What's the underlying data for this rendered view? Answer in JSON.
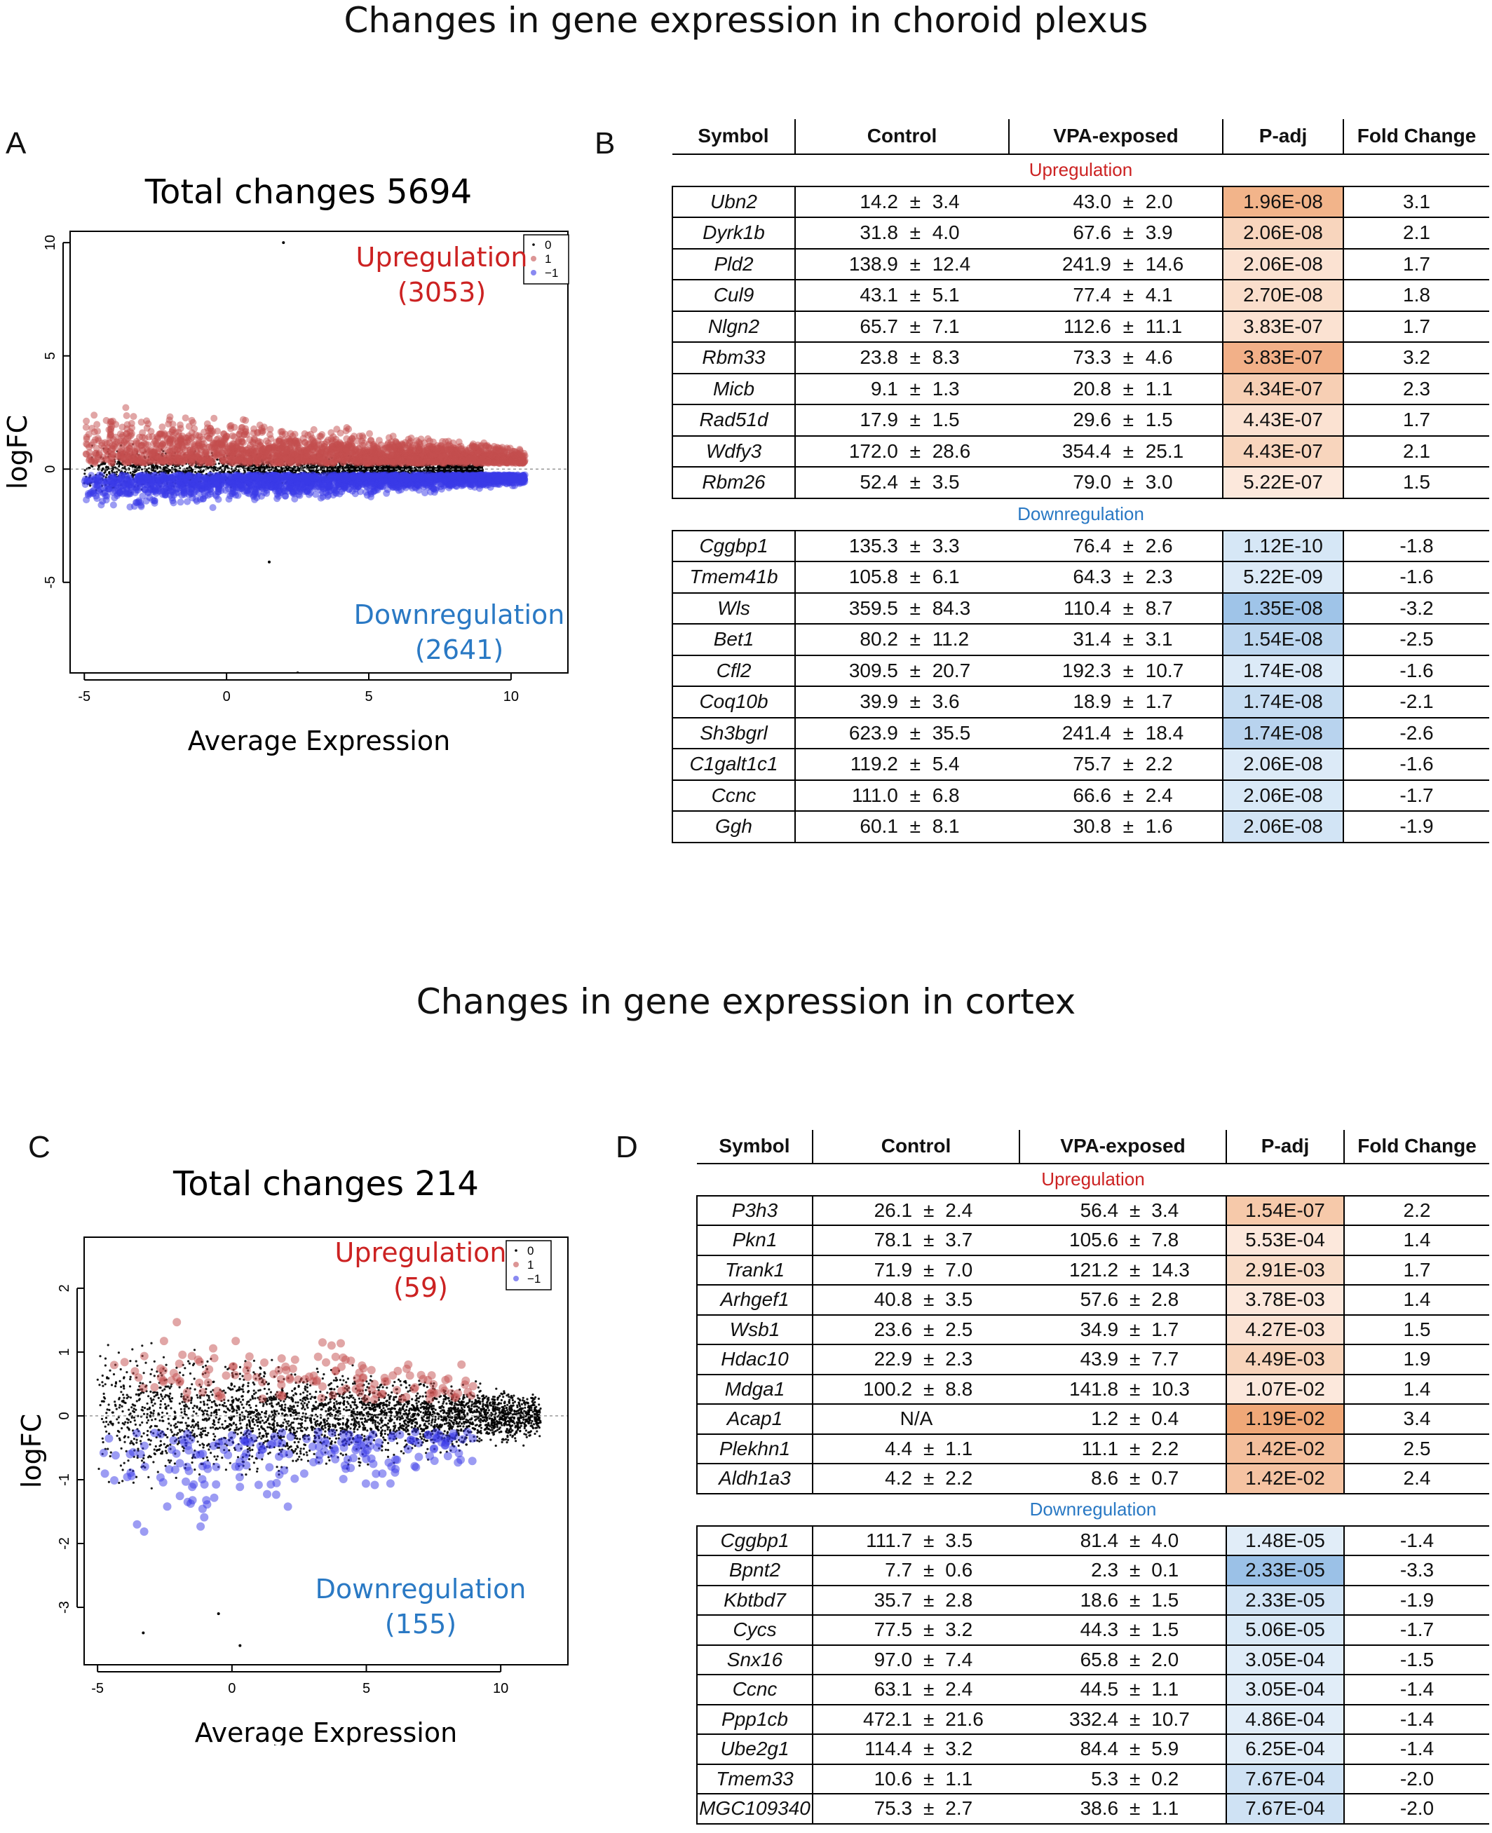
{
  "titles": {
    "top": "Changes in gene expression in choroid plexus",
    "bottom": "Changes in gene expression in cortex"
  },
  "panels": {
    "A": "A",
    "B": "B",
    "C": "C",
    "D": "D"
  },
  "table_headers": [
    "Symbol",
    "Control",
    "VPA-exposed",
    "P-adj",
    "Fold Change"
  ],
  "colors": {
    "up": "#cc2222",
    "down": "#2a79c4",
    "up_points": "#c44e4e",
    "down_points": "#3a3ae8"
  },
  "chart_data": [
    {
      "type": "scatter",
      "title": "Total changes 5694",
      "xlabel": "Average Expression",
      "ylabel": "logFC",
      "xlim": [
        -5.5,
        12
      ],
      "ylim": [
        -9,
        10.5
      ],
      "xticks": [
        "-5",
        "0",
        "5",
        "10"
      ],
      "xtick_values": [
        -5,
        0,
        5,
        10
      ],
      "yticks": [
        "10",
        "5",
        "0",
        "-5"
      ],
      "ytick_values": [
        10,
        5,
        0,
        -5
      ],
      "legend": {
        "entries": [
          "0",
          "1",
          "−1"
        ],
        "position": "top-right"
      },
      "annotations": {
        "up_label": "Upregulation",
        "up_count": "(3053)",
        "down_label": "Downregulation",
        "down_count": "(2641)"
      },
      "series": [
        {
          "name": "1",
          "x_range": [
            -5,
            10.5
          ],
          "y_center": 1.0,
          "spread": 1.0,
          "density": 0.9
        },
        {
          "name": "0",
          "x_range": [
            -5,
            9
          ],
          "y_center": 0,
          "spread": 0.6,
          "density": 1.0
        },
        {
          "name": "−1",
          "x_range": [
            -5,
            10.5
          ],
          "y_center": -0.7,
          "spread": 0.7,
          "density": 0.9
        }
      ],
      "outliers": [
        [
          2,
          10
        ],
        [
          -4.5,
          0
        ],
        [
          1.5,
          -4.1
        ],
        [
          2.5,
          -9
        ]
      ]
    },
    {
      "type": "scatter",
      "title": "Total changes 214",
      "xlabel": "Average Expression",
      "ylabel": "logFC",
      "xlim": [
        -5.5,
        12.5
      ],
      "ylim": [
        -3.9,
        2.8
      ],
      "xticks": [
        "-5",
        "0",
        "5",
        "10"
      ],
      "xtick_values": [
        -5,
        0,
        5,
        10
      ],
      "yticks": [
        "2",
        "1",
        "0",
        "-1",
        "-2",
        "-3"
      ],
      "ytick_values": [
        2,
        1,
        0,
        -1,
        -2,
        -3
      ],
      "legend": {
        "entries": [
          "0",
          "1",
          "−1"
        ],
        "position": "top-right"
      },
      "annotations": {
        "up_label": "Upregulation",
        "up_count": "(59)",
        "down_label": "Downregulation",
        "down_count": "(155)"
      },
      "series": [
        {
          "name": "0",
          "x_range": [
            -5,
            11.5
          ],
          "y_center": 0,
          "spread": 0.7,
          "density": 1.0
        },
        {
          "name": "1",
          "x_range": [
            -4.5,
            9
          ],
          "y_center": 0.8,
          "spread": 0.7,
          "density": 0.35
        },
        {
          "name": "−1",
          "x_range": [
            -5,
            9
          ],
          "y_center": -0.8,
          "spread": 0.8,
          "density": 0.5
        }
      ],
      "outliers": [
        [
          0.3,
          -3.6
        ],
        [
          -3.3,
          -3.4
        ],
        [
          -0.5,
          -3.1
        ]
      ]
    },
    {
      "type": "table",
      "columns": [
        "Symbol",
        "Control",
        "VPA-exposed",
        "P-adj",
        "Fold Change"
      ],
      "groups": [
        {
          "label": "Upregulation",
          "kind": "up",
          "rows": [
            {
              "symbol": "Ubn2",
              "c": "14.2",
              "cs": "3.4",
              "v": "43.0",
              "vs": "2.0",
              "p": "1.96E-08",
              "fc": "3.1",
              "shade": "#f2b48a"
            },
            {
              "symbol": "Dyrk1b",
              "c": "31.8",
              "cs": "4.0",
              "v": "67.6",
              "vs": "3.9",
              "p": "2.06E-08",
              "fc": "2.1",
              "shade": "#f8d5bd"
            },
            {
              "symbol": "Pld2",
              "c": "138.9",
              "cs": "12.4",
              "v": "241.9",
              "vs": "14.6",
              "p": "2.06E-08",
              "fc": "1.7",
              "shade": "#fbe2d2"
            },
            {
              "symbol": "Cul9",
              "c": "43.1",
              "cs": "5.1",
              "v": "77.4",
              "vs": "4.1",
              "p": "2.70E-08",
              "fc": "1.8",
              "shade": "#fadecb"
            },
            {
              "symbol": "Nlgn2",
              "c": "65.7",
              "cs": "7.1",
              "v": "112.6",
              "vs": "11.1",
              "p": "3.83E-07",
              "fc": "1.7",
              "shade": "#fbe2d2"
            },
            {
              "symbol": "Rbm33",
              "c": "23.8",
              "cs": "8.3",
              "v": "73.3",
              "vs": "4.6",
              "p": "3.83E-07",
              "fc": "3.2",
              "shade": "#f2b088"
            },
            {
              "symbol": "Micb",
              "c": "9.1",
              "cs": "1.3",
              "v": "20.8",
              "vs": "1.1",
              "p": "4.34E-07",
              "fc": "2.3",
              "shade": "#f7cfb4"
            },
            {
              "symbol": "Rad51d",
              "c": "17.9",
              "cs": "1.5",
              "v": "29.6",
              "vs": "1.5",
              "p": "4.43E-07",
              "fc": "1.7",
              "shade": "#fbe2d2"
            },
            {
              "symbol": "Wdfy3",
              "c": "172.0",
              "cs": "28.6",
              "v": "354.4",
              "vs": "25.1",
              "p": "4.43E-07",
              "fc": "2.1",
              "shade": "#f8d5bd"
            },
            {
              "symbol": "Rbm26",
              "c": "52.4",
              "cs": "3.5",
              "v": "79.0",
              "vs": "3.0",
              "p": "5.22E-07",
              "fc": "1.5",
              "shade": "#fce8dc"
            }
          ]
        },
        {
          "label": "Downregulation",
          "kind": "down",
          "rows": [
            {
              "symbol": "Cggbp1",
              "c": "135.3",
              "cs": "3.3",
              "v": "76.4",
              "vs": "2.6",
              "p": "1.12E-10",
              "fc": "-1.8",
              "shade": "#d6e7f6"
            },
            {
              "symbol": "Tmem41b",
              "c": "105.8",
              "cs": "6.1",
              "v": "64.3",
              "vs": "2.3",
              "p": "5.22E-09",
              "fc": "-1.6",
              "shade": "#dceaf7"
            },
            {
              "symbol": "Wls",
              "c": "359.5",
              "cs": "84.3",
              "v": "110.4",
              "vs": "8.7",
              "p": "1.35E-08",
              "fc": "-3.2",
              "shade": "#9fc4e8"
            },
            {
              "symbol": "Bet1",
              "c": "80.2",
              "cs": "11.2",
              "v": "31.4",
              "vs": "3.1",
              "p": "1.54E-08",
              "fc": "-2.5",
              "shade": "#bcd6ef"
            },
            {
              "symbol": "Cfl2",
              "c": "309.5",
              "cs": "20.7",
              "v": "192.3",
              "vs": "10.7",
              "p": "1.74E-08",
              "fc": "-1.6",
              "shade": "#dceaf7"
            },
            {
              "symbol": "Coq10b",
              "c": "39.9",
              "cs": "3.6",
              "v": "18.9",
              "vs": "1.7",
              "p": "1.74E-08",
              "fc": "-2.1",
              "shade": "#c7ddf2"
            },
            {
              "symbol": "Sh3bgrl",
              "c": "623.9",
              "cs": "35.5",
              "v": "241.4",
              "vs": "18.4",
              "p": "1.74E-08",
              "fc": "-2.6",
              "shade": "#b8d3ee"
            },
            {
              "symbol": "C1galt1c1",
              "c": "119.2",
              "cs": "5.4",
              "v": "75.7",
              "vs": "2.2",
              "p": "2.06E-08",
              "fc": "-1.6",
              "shade": "#dceaf7"
            },
            {
              "symbol": "Ccnc",
              "c": "111.0",
              "cs": "6.8",
              "v": "66.6",
              "vs": "2.4",
              "p": "2.06E-08",
              "fc": "-1.7",
              "shade": "#d9e9f7"
            },
            {
              "symbol": "Ggh",
              "c": "60.1",
              "cs": "8.1",
              "v": "30.8",
              "vs": "1.6",
              "p": "2.06E-08",
              "fc": "-1.9",
              "shade": "#d2e4f5"
            }
          ]
        }
      ]
    },
    {
      "type": "table",
      "columns": [
        "Symbol",
        "Control",
        "VPA-exposed",
        "P-adj",
        "Fold Change"
      ],
      "groups": [
        {
          "label": "Upregulation",
          "kind": "up",
          "rows": [
            {
              "symbol": "P3h3",
              "c": "26.1",
              "cs": "2.4",
              "v": "56.4",
              "vs": "3.4",
              "p": "1.54E-07",
              "fc": "2.2",
              "shade": "#f6c9aa"
            },
            {
              "symbol": "Pkn1",
              "c": "78.1",
              "cs": "3.7",
              "v": "105.6",
              "vs": "7.8",
              "p": "5.53E-04",
              "fc": "1.4",
              "shade": "#fce8dc"
            },
            {
              "symbol": "Trank1",
              "c": "71.9",
              "cs": "7.0",
              "v": "121.2",
              "vs": "14.3",
              "p": "2.91E-03",
              "fc": "1.7",
              "shade": "#f9dcc8"
            },
            {
              "symbol": "Arhgef1",
              "c": "40.8",
              "cs": "3.5",
              "v": "57.6",
              "vs": "2.8",
              "p": "3.78E-03",
              "fc": "1.4",
              "shade": "#fce8dc"
            },
            {
              "symbol": "Wsb1",
              "c": "23.6",
              "cs": "2.5",
              "v": "34.9",
              "vs": "1.7",
              "p": "4.27E-03",
              "fc": "1.5",
              "shade": "#fbe3d4"
            },
            {
              "symbol": "Hdac10",
              "c": "22.9",
              "cs": "2.3",
              "v": "43.9",
              "vs": "7.7",
              "p": "4.49E-03",
              "fc": "1.9",
              "shade": "#f8d4bb"
            },
            {
              "symbol": "Mdga1",
              "c": "100.2",
              "cs": "8.8",
              "v": "141.8",
              "vs": "10.3",
              "p": "1.07E-02",
              "fc": "1.4",
              "shade": "#fce8dc"
            },
            {
              "symbol": "Acap1",
              "c": "N/A",
              "cs": "",
              "v": "1.2",
              "vs": "0.4",
              "p": "1.19E-02",
              "fc": "3.4",
              "shade": "#f0a878"
            },
            {
              "symbol": "Plekhn1",
              "c": "4.4",
              "cs": "1.1",
              "v": "11.1",
              "vs": "2.2",
              "p": "1.42E-02",
              "fc": "2.5",
              "shade": "#f4bf9c"
            },
            {
              "symbol": "Aldh1a3",
              "c": "4.2",
              "cs": "2.2",
              "v": "8.6",
              "vs": "0.7",
              "p": "1.42E-02",
              "fc": "2.4",
              "shade": "#f5c3a2"
            }
          ]
        },
        {
          "label": "Downregulation",
          "kind": "down",
          "rows": [
            {
              "symbol": "Cggbp1",
              "c": "111.7",
              "cs": "3.5",
              "v": "81.4",
              "vs": "4.0",
              "p": "1.48E-05",
              "fc": "-1.4",
              "shade": "#e1edf8"
            },
            {
              "symbol": "Bpnt2",
              "c": "7.7",
              "cs": "0.6",
              "v": "2.3",
              "vs": "0.1",
              "p": "2.33E-05",
              "fc": "-3.3",
              "shade": "#9bc1e7"
            },
            {
              "symbol": "Kbtbd7",
              "c": "35.7",
              "cs": "2.8",
              "v": "18.6",
              "vs": "1.5",
              "p": "2.33E-05",
              "fc": "-1.9",
              "shade": "#d2e4f5"
            },
            {
              "symbol": "Cycs",
              "c": "77.5",
              "cs": "3.2",
              "v": "44.3",
              "vs": "1.5",
              "p": "5.06E-05",
              "fc": "-1.7",
              "shade": "#d9e9f7"
            },
            {
              "symbol": "Snx16",
              "c": "97.0",
              "cs": "7.4",
              "v": "65.8",
              "vs": "2.0",
              "p": "3.05E-04",
              "fc": "-1.5",
              "shade": "#dfecf8"
            },
            {
              "symbol": "Ccnc",
              "c": "63.1",
              "cs": "2.4",
              "v": "44.5",
              "vs": "1.1",
              "p": "3.05E-04",
              "fc": "-1.4",
              "shade": "#e1edf8"
            },
            {
              "symbol": "Ppp1cb",
              "c": "472.1",
              "cs": "21.6",
              "v": "332.4",
              "vs": "10.7",
              "p": "4.86E-04",
              "fc": "-1.4",
              "shade": "#e1edf8"
            },
            {
              "symbol": "Ube2g1",
              "c": "114.4",
              "cs": "3.2",
              "v": "84.4",
              "vs": "5.9",
              "p": "6.25E-04",
              "fc": "-1.4",
              "shade": "#e1edf8"
            },
            {
              "symbol": "Tmem33",
              "c": "10.6",
              "cs": "1.1",
              "v": "5.3",
              "vs": "0.2",
              "p": "7.67E-04",
              "fc": "-2.0",
              "shade": "#cfe2f4"
            },
            {
              "symbol": "MGC109340",
              "c": "75.3",
              "cs": "2.7",
              "v": "38.6",
              "vs": "1.1",
              "p": "7.67E-04",
              "fc": "-2.0",
              "shade": "#cfe2f4"
            }
          ]
        }
      ]
    }
  ]
}
